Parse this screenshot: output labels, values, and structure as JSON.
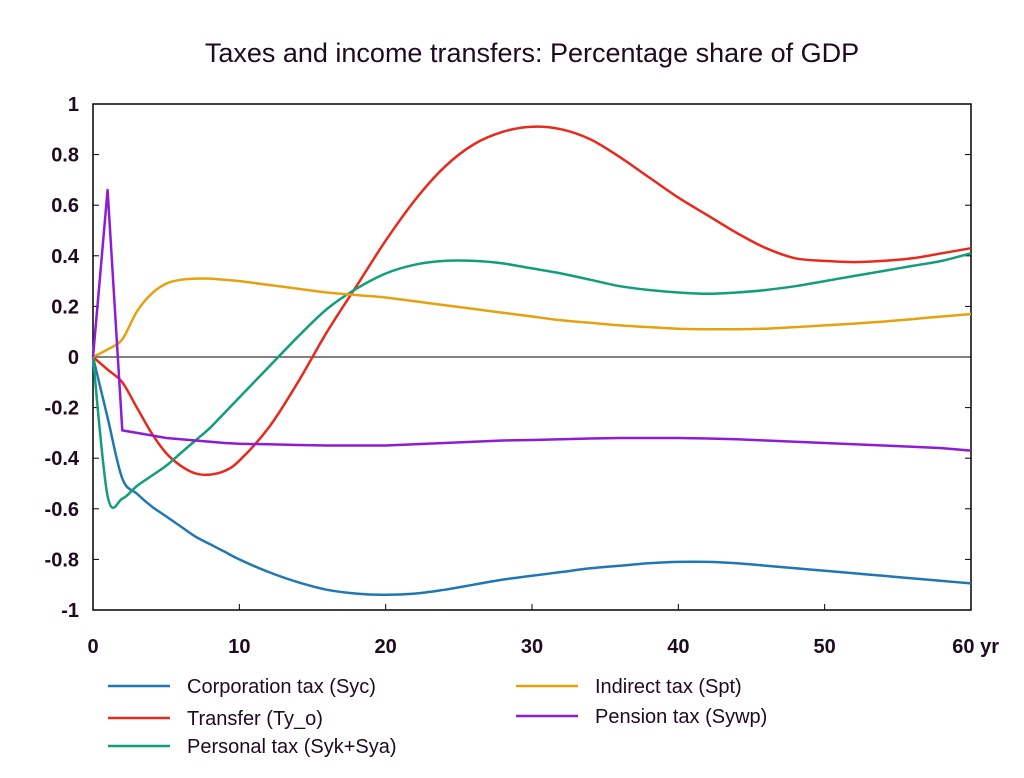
{
  "chart_data": {
    "type": "line",
    "title": "Taxes and income transfers: Percentage share of GDP",
    "xlabel": "",
    "ylabel": "",
    "xlim": [
      0,
      60
    ],
    "ylim": [
      -1,
      1
    ],
    "x_ticks": [
      0,
      10,
      20,
      30,
      40,
      50,
      60
    ],
    "x_tick_labels": [
      "0",
      "10",
      "20",
      "30",
      "40",
      "50",
      "60 yr"
    ],
    "y_ticks": [
      1,
      0.8,
      0.6,
      0.4,
      0.2,
      0,
      -0.2,
      -0.4,
      -0.6,
      -0.8,
      -1
    ],
    "y_tick_labels": [
      "1",
      "0.8",
      "0.6",
      "0.4",
      "0.2",
      "0",
      "-0.2",
      "-0.4",
      "-0.6",
      "-0.8",
      "-1"
    ],
    "grid": false,
    "zero_line": true,
    "legend_position": "bottom",
    "x": [
      0,
      1,
      2,
      3,
      4,
      5,
      6,
      7,
      8,
      9,
      10,
      12,
      14,
      16,
      18,
      20,
      22,
      24,
      26,
      28,
      30,
      32,
      34,
      36,
      38,
      40,
      42,
      44,
      46,
      48,
      50,
      52,
      54,
      56,
      58,
      60
    ],
    "series": [
      {
        "name": "Corporation tax (Syc)",
        "color": "#1f77b4",
        "values": [
          0,
          -0.24,
          -0.48,
          -0.54,
          -0.59,
          -0.63,
          -0.67,
          -0.71,
          -0.74,
          -0.77,
          -0.8,
          -0.85,
          -0.89,
          -0.92,
          -0.935,
          -0.94,
          -0.935,
          -0.92,
          -0.9,
          -0.88,
          -0.865,
          -0.85,
          -0.835,
          -0.825,
          -0.815,
          -0.81,
          -0.81,
          -0.815,
          -0.825,
          -0.835,
          -0.845,
          -0.855,
          -0.865,
          -0.875,
          -0.885,
          -0.895
        ]
      },
      {
        "name": "Transfer (Ty_o)",
        "color": "#e8291c",
        "values": [
          0,
          -0.05,
          -0.1,
          -0.2,
          -0.3,
          -0.38,
          -0.43,
          -0.46,
          -0.465,
          -0.45,
          -0.41,
          -0.28,
          -0.1,
          0.1,
          0.28,
          0.46,
          0.62,
          0.75,
          0.84,
          0.89,
          0.91,
          0.9,
          0.86,
          0.79,
          0.71,
          0.63,
          0.56,
          0.49,
          0.43,
          0.39,
          0.38,
          0.375,
          0.38,
          0.39,
          0.41,
          0.43
        ]
      },
      {
        "name": "Personal tax (Syk+Sya)",
        "color": "#129e7b",
        "values": [
          0,
          -0.55,
          -0.56,
          -0.51,
          -0.47,
          -0.43,
          -0.38,
          -0.33,
          -0.28,
          -0.22,
          -0.16,
          -0.04,
          0.08,
          0.19,
          0.27,
          0.33,
          0.365,
          0.38,
          0.38,
          0.37,
          0.35,
          0.33,
          0.305,
          0.28,
          0.265,
          0.255,
          0.25,
          0.255,
          0.265,
          0.28,
          0.3,
          0.32,
          0.34,
          0.36,
          0.38,
          0.41
        ]
      },
      {
        "name": "Indirect tax (Spt)",
        "color": "#e6a10e",
        "values": [
          0,
          0.03,
          0.07,
          0.18,
          0.25,
          0.29,
          0.305,
          0.31,
          0.31,
          0.305,
          0.3,
          0.285,
          0.27,
          0.255,
          0.245,
          0.235,
          0.22,
          0.205,
          0.19,
          0.175,
          0.16,
          0.145,
          0.135,
          0.125,
          0.118,
          0.112,
          0.11,
          0.11,
          0.112,
          0.118,
          0.125,
          0.132,
          0.14,
          0.15,
          0.16,
          0.17
        ]
      },
      {
        "name": "Pension tax (Sywp)",
        "color": "#8e1cd6",
        "values": [
          0,
          0.66,
          -0.29,
          -0.3,
          -0.31,
          -0.32,
          -0.325,
          -0.33,
          -0.335,
          -0.34,
          -0.343,
          -0.345,
          -0.348,
          -0.35,
          -0.35,
          -0.35,
          -0.345,
          -0.34,
          -0.335,
          -0.33,
          -0.328,
          -0.325,
          -0.322,
          -0.32,
          -0.32,
          -0.32,
          -0.322,
          -0.325,
          -0.33,
          -0.335,
          -0.34,
          -0.345,
          -0.35,
          -0.355,
          -0.36,
          -0.37
        ]
      }
    ]
  }
}
